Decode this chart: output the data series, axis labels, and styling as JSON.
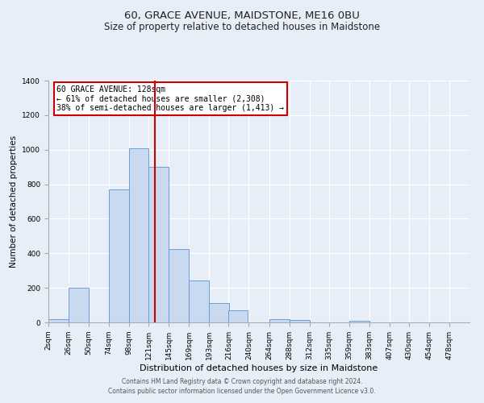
{
  "title": "60, GRACE AVENUE, MAIDSTONE, ME16 0BU",
  "subtitle": "Size of property relative to detached houses in Maidstone",
  "xlabel": "Distribution of detached houses by size in Maidstone",
  "ylabel": "Number of detached properties",
  "bar_left_edges": [
    2,
    26,
    50,
    74,
    98,
    121,
    145,
    169,
    193,
    216,
    240,
    264,
    288,
    312,
    335,
    359,
    383,
    407,
    430,
    454
  ],
  "bar_widths": [
    24,
    24,
    24,
    24,
    23,
    24,
    24,
    24,
    24,
    23,
    24,
    24,
    24,
    23,
    24,
    24,
    24,
    23,
    24,
    24
  ],
  "bar_heights": [
    20,
    200,
    0,
    770,
    1010,
    900,
    425,
    245,
    110,
    70,
    0,
    20,
    15,
    0,
    0,
    10,
    0,
    0,
    0,
    0
  ],
  "bar_color": "#c9d9f0",
  "bar_edge_color": "#6a9fd8",
  "tick_labels": [
    "2sqm",
    "26sqm",
    "50sqm",
    "74sqm",
    "98sqm",
    "121sqm",
    "145sqm",
    "169sqm",
    "193sqm",
    "216sqm",
    "240sqm",
    "264sqm",
    "288sqm",
    "312sqm",
    "335sqm",
    "359sqm",
    "383sqm",
    "407sqm",
    "430sqm",
    "454sqm",
    "478sqm"
  ],
  "vline_x": 128,
  "vline_color": "#cc0000",
  "ylim": [
    0,
    1400
  ],
  "yticks": [
    0,
    200,
    400,
    600,
    800,
    1000,
    1200,
    1400
  ],
  "annotation_title": "60 GRACE AVENUE: 128sqm",
  "annotation_line1": "← 61% of detached houses are smaller (2,308)",
  "annotation_line2": "38% of semi-detached houses are larger (1,413) →",
  "annotation_box_color": "#ffffff",
  "annotation_box_edge": "#cc0000",
  "footer1": "Contains HM Land Registry data © Crown copyright and database right 2024.",
  "footer2": "Contains public sector information licensed under the Open Government Licence v3.0.",
  "background_color": "#e8eef8",
  "plot_bg_color": "#e8eef8",
  "title_fontsize": 9.5,
  "subtitle_fontsize": 8.5,
  "xlabel_fontsize": 8,
  "ylabel_fontsize": 7.5,
  "tick_fontsize": 6.5,
  "footer_fontsize": 5.5,
  "annotation_fontsize": 7,
  "xlim_left": 2,
  "xlim_right": 502
}
